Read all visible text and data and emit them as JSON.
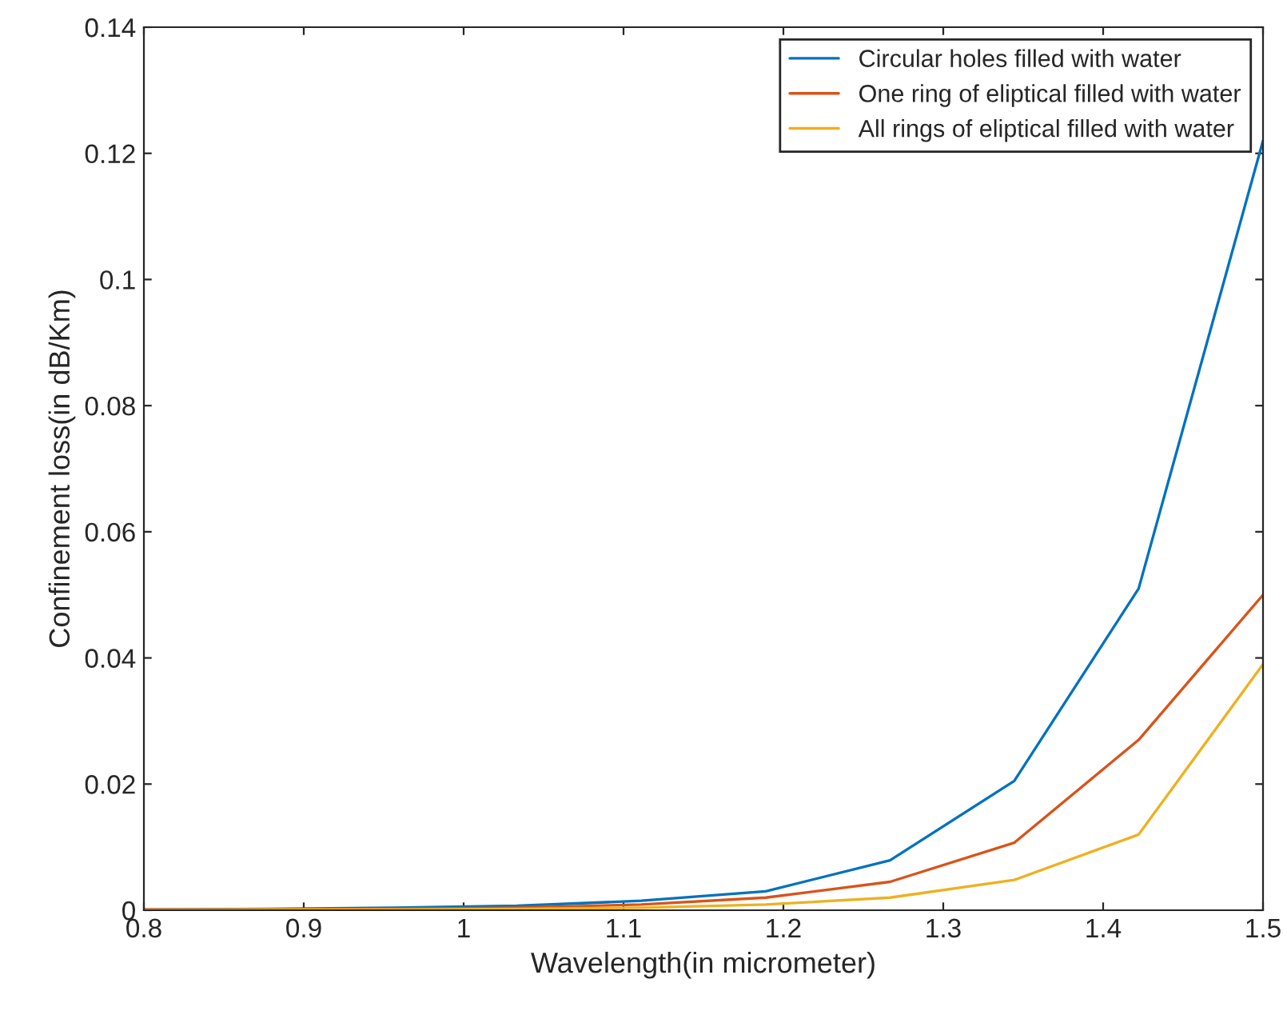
{
  "chart_data": {
    "type": "line",
    "xlabel": "Wavelength(in micrometer)",
    "ylabel": "Confinement loss(in dB/Km)",
    "x": [
      0.8,
      0.8778,
      0.9556,
      1.0333,
      1.1111,
      1.1889,
      1.2667,
      1.3444,
      1.4222,
      1.5
    ],
    "series": [
      {
        "name": "Circular holes filled with water",
        "color": "#0072bd",
        "values": [
          0.0001,
          0.0002,
          0.0004,
          0.0007,
          0.0015,
          0.003,
          0.0079,
          0.0205,
          0.051,
          0.122
        ]
      },
      {
        "name": "One ring of eliptical filled with water",
        "color": "#d95319",
        "values": [
          0.0001,
          0.0001,
          0.0002,
          0.0004,
          0.0009,
          0.002,
          0.0045,
          0.0107,
          0.027,
          0.05
        ]
      },
      {
        "name": "All rings of eliptical filled with water",
        "color": "#edb120",
        "values": [
          0.0,
          0.0001,
          0.0001,
          0.0002,
          0.0004,
          0.0009,
          0.002,
          0.0048,
          0.012,
          0.039
        ]
      }
    ],
    "xlim": [
      0.8,
      1.5
    ],
    "xticks": [
      0.8,
      0.9,
      1,
      1.1,
      1.2,
      1.3,
      1.4,
      1.5
    ],
    "ylim": [
      0,
      0.14
    ],
    "yticks": [
      0,
      0.02,
      0.04,
      0.06,
      0.08,
      0.1,
      0.12,
      0.14
    ],
    "grid": false,
    "legend": "top right",
    "marker": "none",
    "line_style": "solid"
  }
}
